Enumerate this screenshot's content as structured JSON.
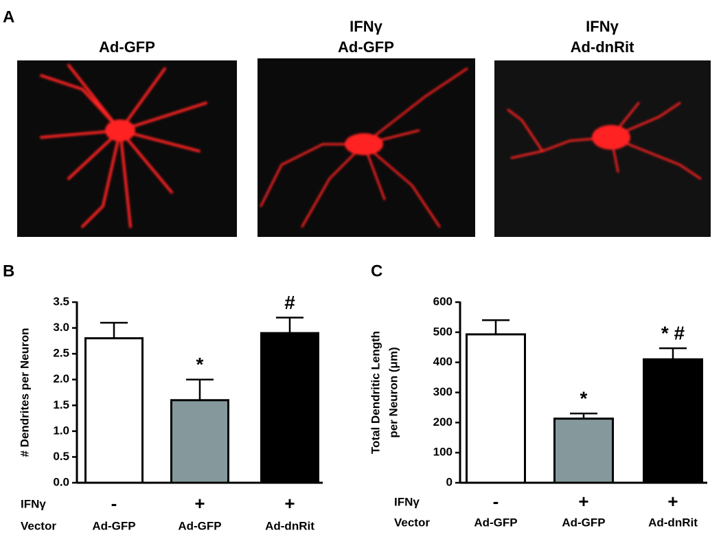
{
  "panel_a": {
    "label": "A",
    "images": [
      {
        "title": [
          "Ad-GFP"
        ]
      },
      {
        "title": [
          "IFNγ",
          "Ad-GFP"
        ]
      },
      {
        "title": [
          "IFNγ",
          "Ad-dnRit"
        ]
      }
    ]
  },
  "chart_data": [
    {
      "type": "bar",
      "label": "B",
      "ylabel": "# Dendrites per Neuron",
      "categories": [
        "Ad-GFP",
        "Ad-GFP",
        "Ad-dnRit"
      ],
      "values": [
        2.8,
        1.6,
        2.9
      ],
      "errors": [
        0.3,
        0.4,
        0.3
      ],
      "colors": [
        "#ffffff",
        "#85999c",
        "#000000"
      ],
      "annotations": [
        null,
        "*",
        "#"
      ],
      "row_labels": {
        "treatment": "IFNγ",
        "vector": "Vector"
      },
      "treatment": [
        "-",
        "+",
        "+"
      ],
      "ylim": [
        0,
        3.5
      ],
      "yticks": [
        {
          "value": 0,
          "label": "0.0"
        },
        {
          "value": 0.5,
          "label": "0.5"
        },
        {
          "value": 1,
          "label": "1.0"
        },
        {
          "value": 1.5,
          "label": "1.5"
        },
        {
          "value": 2,
          "label": "2.0"
        },
        {
          "value": 2.5,
          "label": "2.5"
        },
        {
          "value": 3,
          "label": "3.0"
        },
        {
          "value": 3.5,
          "label": "3.5"
        }
      ]
    },
    {
      "type": "bar",
      "label": "C",
      "ylabel": [
        "Total Dendritic Length",
        "per Neuron (μm)"
      ],
      "categories": [
        "Ad-GFP",
        "Ad-GFP",
        "Ad-dnRit"
      ],
      "values": [
        493,
        213,
        410
      ],
      "errors": [
        47,
        17,
        37
      ],
      "colors": [
        "#ffffff",
        "#85999c",
        "#000000"
      ],
      "annotations": [
        null,
        "*",
        "* #"
      ],
      "row_labels": {
        "treatment": "IFNγ",
        "vector": "Vector"
      },
      "treatment": [
        "-",
        "+",
        "+"
      ],
      "ylim": [
        0,
        600
      ],
      "yticks": [
        0,
        100,
        200,
        300,
        400,
        500,
        600
      ]
    }
  ]
}
